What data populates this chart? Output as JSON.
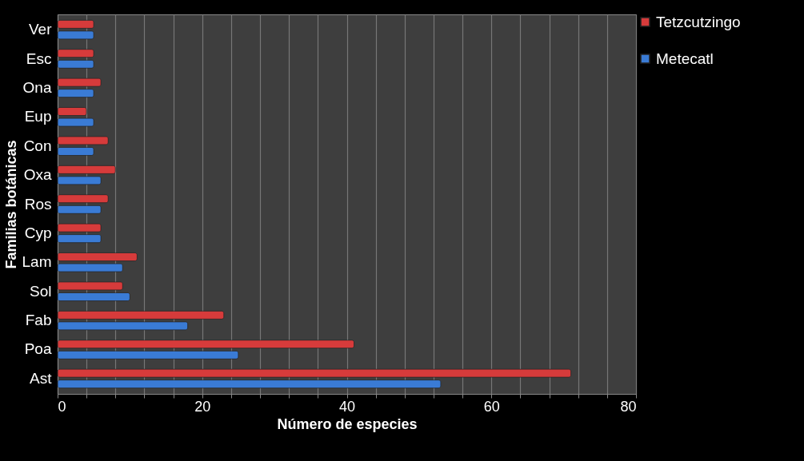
{
  "chart_data": {
    "type": "bar",
    "orientation": "horizontal",
    "xlabel": "Número de especies",
    "ylabel": "Familias botánicas",
    "categories": [
      "Ver",
      "Esc",
      "Ona",
      "Eup",
      "Con",
      "Oxa",
      "Ros",
      "Cyp",
      "Lam",
      "Sol",
      "Fab",
      "Poa",
      "Ast"
    ],
    "series": [
      {
        "name": "Tetzcutzingo",
        "color": "#d63b3b",
        "values": [
          5,
          5,
          6,
          4,
          7,
          8,
          7,
          6,
          11,
          9,
          23,
          41,
          71
        ]
      },
      {
        "name": "Metecatl",
        "color": "#3a7bd5",
        "values": [
          5,
          5,
          5,
          5,
          5,
          6,
          6,
          6,
          9,
          10,
          18,
          25,
          53
        ]
      }
    ],
    "xlim": [
      0,
      80
    ],
    "xticks": [
      0,
      {
        "value": 4,
        "label": null
      },
      {
        "value": 8,
        "label": null
      },
      {
        "value": 12,
        "label": null
      },
      {
        "value": 16,
        "label": null
      },
      20,
      {
        "value": 24,
        "label": null
      },
      {
        "value": 28,
        "label": null
      },
      {
        "value": 32,
        "label": null
      },
      {
        "value": 36,
        "label": null
      },
      40,
      {
        "value": 44,
        "label": null
      },
      {
        "value": 48,
        "label": null
      },
      {
        "value": 52,
        "label": null
      },
      {
        "value": 56,
        "label": null
      },
      60,
      {
        "value": 64,
        "label": null
      },
      {
        "value": 68,
        "label": null
      },
      {
        "value": 72,
        "label": null
      },
      {
        "value": 76,
        "label": null
      },
      80
    ],
    "grid": true,
    "legend": "right"
  }
}
